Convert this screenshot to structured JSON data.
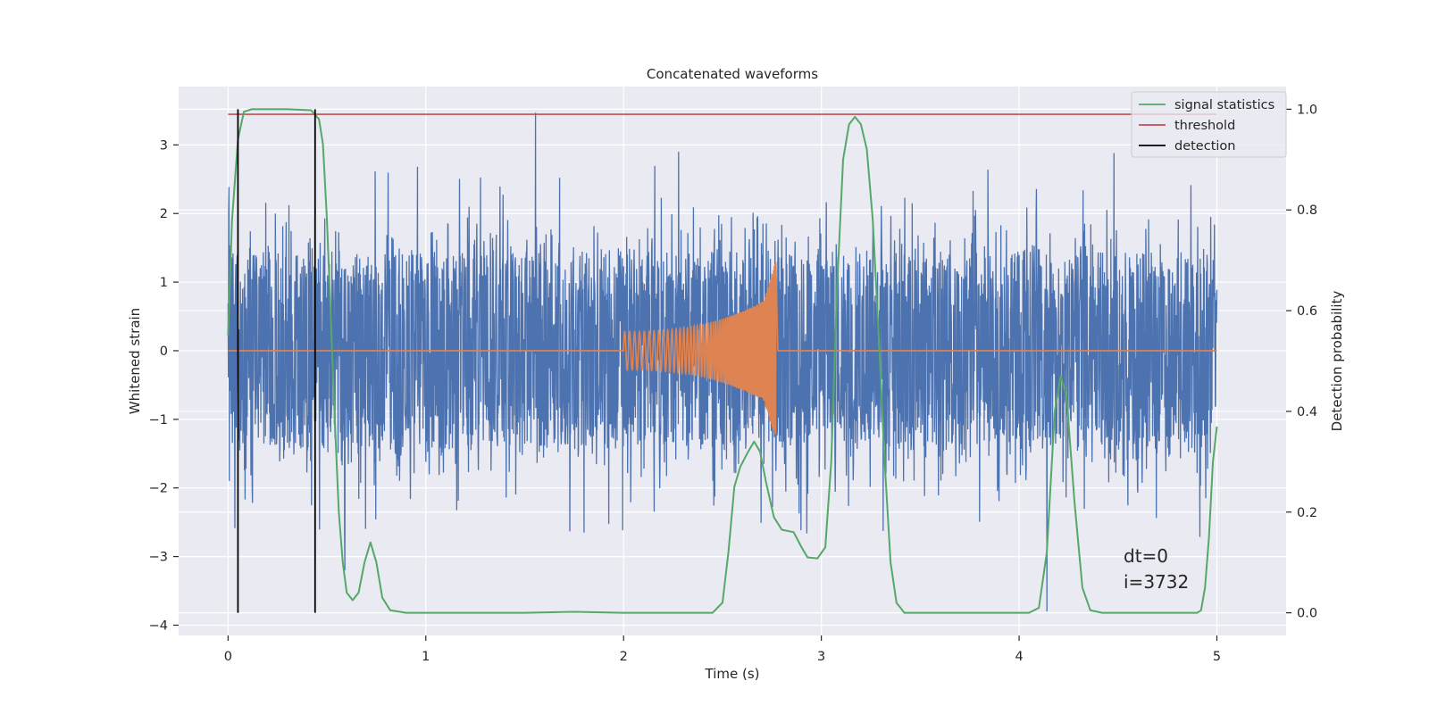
{
  "chart_data": {
    "type": "line",
    "title": "Concatenated waveforms",
    "xlabel": "Time (s)",
    "ylabel": "Whitened strain",
    "y2label": "Detection probability",
    "xlim": [
      -0.25,
      5.35
    ],
    "ylim": [
      -4.15,
      3.85
    ],
    "y2lim": [
      -0.045,
      1.045
    ],
    "xticks": [
      0,
      1,
      2,
      3,
      4,
      5
    ],
    "yticks": [
      -4,
      -3,
      -2,
      -1,
      0,
      1,
      2,
      3
    ],
    "yticklabels": [
      "−4",
      "−3",
      "−2",
      "−1",
      "0",
      "1",
      "2",
      "3"
    ],
    "y2ticks": [
      0.0,
      0.2,
      0.4,
      0.6,
      0.8,
      1.0
    ],
    "y2ticklabels": [
      "0.0",
      "0.2",
      "0.4",
      "0.6",
      "0.8",
      "1.0"
    ],
    "grid": true,
    "legend_position": "top-right",
    "legend": [
      {
        "label": "signal statistics",
        "color": "#55a868"
      },
      {
        "label": "threshold",
        "color": "#c44e52"
      },
      {
        "label": "detection",
        "color": "#000000"
      }
    ],
    "annotations": [
      "dt=0",
      "i=3732"
    ],
    "series": [
      {
        "name": "whitened strain (noise)",
        "axis": "left",
        "color": "#4c72b0",
        "kind": "noise",
        "x_range": [
          0,
          5
        ],
        "typical_amplitude": 1.6,
        "max_value": 3.47,
        "min_value": -3.8
      },
      {
        "name": "injected waveform",
        "axis": "left",
        "color": "#dd8452",
        "kind": "chirp",
        "x_range": [
          2.0,
          2.77
        ],
        "peak_amplitude": 1.3
      },
      {
        "name": "signal statistics",
        "axis": "right",
        "color": "#55a868",
        "points": [
          [
            0.0,
            0.55
          ],
          [
            0.02,
            0.78
          ],
          [
            0.05,
            0.94
          ],
          [
            0.08,
            0.995
          ],
          [
            0.12,
            1.0
          ],
          [
            0.3,
            1.0
          ],
          [
            0.42,
            0.998
          ],
          [
            0.46,
            0.98
          ],
          [
            0.48,
            0.93
          ],
          [
            0.5,
            0.78
          ],
          [
            0.52,
            0.58
          ],
          [
            0.54,
            0.38
          ],
          [
            0.56,
            0.2
          ],
          [
            0.58,
            0.1
          ],
          [
            0.6,
            0.04
          ],
          [
            0.63,
            0.025
          ],
          [
            0.66,
            0.04
          ],
          [
            0.69,
            0.1
          ],
          [
            0.72,
            0.14
          ],
          [
            0.75,
            0.1
          ],
          [
            0.78,
            0.03
          ],
          [
            0.82,
            0.005
          ],
          [
            0.9,
            0.0
          ],
          [
            1.5,
            0.0
          ],
          [
            1.75,
            0.002
          ],
          [
            2.0,
            0.0
          ],
          [
            2.45,
            0.0
          ],
          [
            2.5,
            0.02
          ],
          [
            2.53,
            0.12
          ],
          [
            2.56,
            0.25
          ],
          [
            2.59,
            0.29
          ],
          [
            2.63,
            0.32
          ],
          [
            2.66,
            0.34
          ],
          [
            2.69,
            0.32
          ],
          [
            2.72,
            0.26
          ],
          [
            2.76,
            0.19
          ],
          [
            2.8,
            0.165
          ],
          [
            2.86,
            0.16
          ],
          [
            2.9,
            0.13
          ],
          [
            2.93,
            0.11
          ],
          [
            2.98,
            0.108
          ],
          [
            3.02,
            0.13
          ],
          [
            3.05,
            0.3
          ],
          [
            3.08,
            0.65
          ],
          [
            3.11,
            0.9
          ],
          [
            3.14,
            0.97
          ],
          [
            3.17,
            0.985
          ],
          [
            3.2,
            0.97
          ],
          [
            3.23,
            0.92
          ],
          [
            3.26,
            0.78
          ],
          [
            3.29,
            0.55
          ],
          [
            3.32,
            0.3
          ],
          [
            3.35,
            0.1
          ],
          [
            3.38,
            0.02
          ],
          [
            3.42,
            0.0
          ],
          [
            4.05,
            0.0
          ],
          [
            4.1,
            0.01
          ],
          [
            4.14,
            0.12
          ],
          [
            4.18,
            0.4
          ],
          [
            4.21,
            0.47
          ],
          [
            4.24,
            0.43
          ],
          [
            4.28,
            0.22
          ],
          [
            4.32,
            0.05
          ],
          [
            4.36,
            0.005
          ],
          [
            4.42,
            0.0
          ],
          [
            4.9,
            0.0
          ],
          [
            4.92,
            0.005
          ],
          [
            4.94,
            0.05
          ],
          [
            4.96,
            0.15
          ],
          [
            4.98,
            0.3
          ],
          [
            5.0,
            0.37
          ]
        ]
      },
      {
        "name": "threshold",
        "axis": "right",
        "color": "#c44e52",
        "points": [
          [
            0,
            0.99
          ],
          [
            5,
            0.99
          ]
        ]
      }
    ],
    "detections": [
      0.05,
      0.44
    ]
  }
}
